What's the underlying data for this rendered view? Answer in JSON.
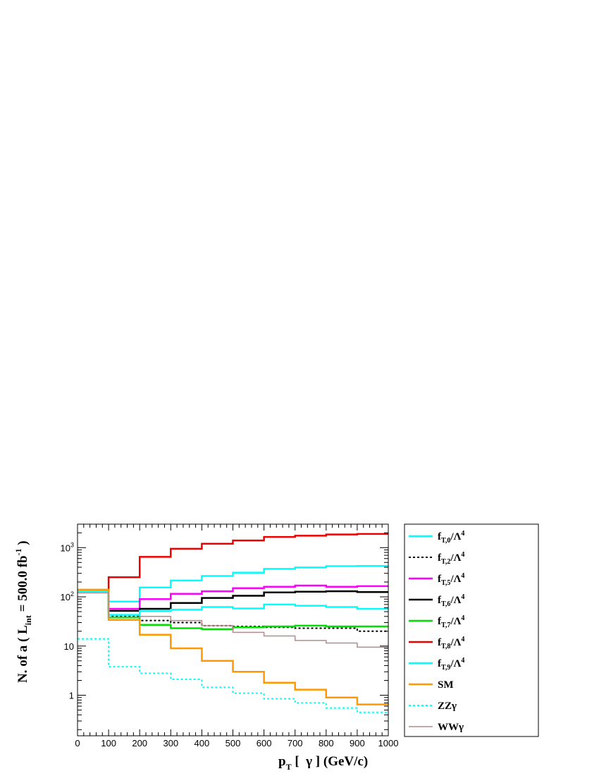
{
  "chart_data": {
    "type": "line",
    "step": true,
    "title": "",
    "xlabel": {
      "main": "p",
      "sub": "T",
      "rest": " [  γ ] (GeV/c)"
    },
    "ylabel": {
      "pre": "N. of a ( L",
      "sub": "int",
      "mid": " = 500.0 fb",
      "sup": "-1",
      "post": " )"
    },
    "x_edges": [
      0,
      100,
      200,
      300,
      400,
      500,
      600,
      700,
      800,
      900,
      1000
    ],
    "xlim": [
      0,
      1000
    ],
    "ylim": [
      0.15,
      3000
    ],
    "yscale": "log",
    "x_ticks": [
      0,
      100,
      200,
      300,
      400,
      500,
      600,
      700,
      800,
      900,
      1000
    ],
    "y_ticks": [
      {
        "value": 1,
        "base": "1",
        "exp": ""
      },
      {
        "value": 10,
        "base": "10",
        "exp": ""
      },
      {
        "value": 100,
        "base": "10",
        "exp": "2"
      },
      {
        "value": 1000,
        "base": "10",
        "exp": "3"
      }
    ],
    "grid": false,
    "legend_position": "right",
    "series": [
      {
        "name": "f_{T,0}/Λ^4",
        "base": "f",
        "sub": "T,0",
        "suffix": "/Λ",
        "sup": "4",
        "color": "#00ffff",
        "dash": "",
        "width": 2.5,
        "values": [
          130,
          80,
          155,
          215,
          265,
          310,
          370,
          395,
          420,
          425
        ]
      },
      {
        "name": "f_{T,2}/Λ^4",
        "base": "f",
        "sub": "T,2",
        "suffix": "/Λ",
        "sup": "4",
        "color": "#000000",
        "dash": "3,3",
        "width": 2,
        "values": [
          130,
          40,
          33,
          30,
          26,
          25,
          24,
          23,
          23,
          20
        ]
      },
      {
        "name": "f_{T,5}/Λ^4",
        "base": "f",
        "sub": "T,5",
        "suffix": "/Λ",
        "sup": "4",
        "color": "#ff00ff",
        "dash": "",
        "width": 2.5,
        "values": [
          130,
          57,
          90,
          115,
          130,
          150,
          160,
          170,
          160,
          165
        ]
      },
      {
        "name": "f_{T,6}/Λ^4",
        "base": "f",
        "sub": "T,6",
        "suffix": "/Λ",
        "sup": "4",
        "color": "#000000",
        "dash": "",
        "width": 2.5,
        "values": [
          130,
          52,
          57,
          75,
          95,
          105,
          123,
          127,
          130,
          125
        ]
      },
      {
        "name": "f_{T,7}/Λ^4",
        "base": "f",
        "sub": "T,7",
        "suffix": "/Λ",
        "sup": "4",
        "color": "#00dd00",
        "dash": "",
        "width": 2.5,
        "values": [
          130,
          38,
          27,
          23,
          22,
          24,
          25,
          26,
          25,
          25
        ]
      },
      {
        "name": "f_{T,8}/Λ^4",
        "base": "f",
        "sub": "T,8",
        "suffix": "/Λ",
        "sup": "4",
        "color": "#ee0000",
        "dash": "",
        "width": 2.5,
        "values": [
          135,
          250,
          650,
          950,
          1200,
          1400,
          1650,
          1750,
          1850,
          1900
        ]
      },
      {
        "name": "f_{T,9}/Λ^4",
        "base": "f",
        "sub": "T,9",
        "suffix": "/Λ",
        "sup": "4",
        "color": "#00ffff",
        "dash": "",
        "width": 2.5,
        "values": [
          130,
          43,
          52,
          55,
          62,
          58,
          70,
          66,
          62,
          57
        ]
      },
      {
        "name": "SM",
        "base": "SM",
        "sub": "",
        "suffix": "",
        "sup": "",
        "color": "#ff9900",
        "dash": "",
        "width": 2.5,
        "values": [
          140,
          34,
          17,
          9,
          5,
          3,
          1.8,
          1.3,
          0.9,
          0.65
        ]
      },
      {
        "name": "ZZγ",
        "base": "ZZγ",
        "sub": "",
        "suffix": "",
        "sup": "",
        "color": "#00ffff",
        "dash": "3,3",
        "width": 2,
        "values": [
          14,
          3.8,
          2.8,
          2.1,
          1.45,
          1.1,
          0.85,
          0.7,
          0.55,
          0.45
        ]
      },
      {
        "name": "WWγ",
        "base": "WWγ",
        "sub": "",
        "suffix": "",
        "sup": "",
        "color": "#b08c8c",
        "dash": "",
        "width": 1.5,
        "values": [
          120,
          38,
          40,
          33,
          26,
          19,
          16,
          13,
          11.5,
          9.5
        ]
      }
    ]
  }
}
